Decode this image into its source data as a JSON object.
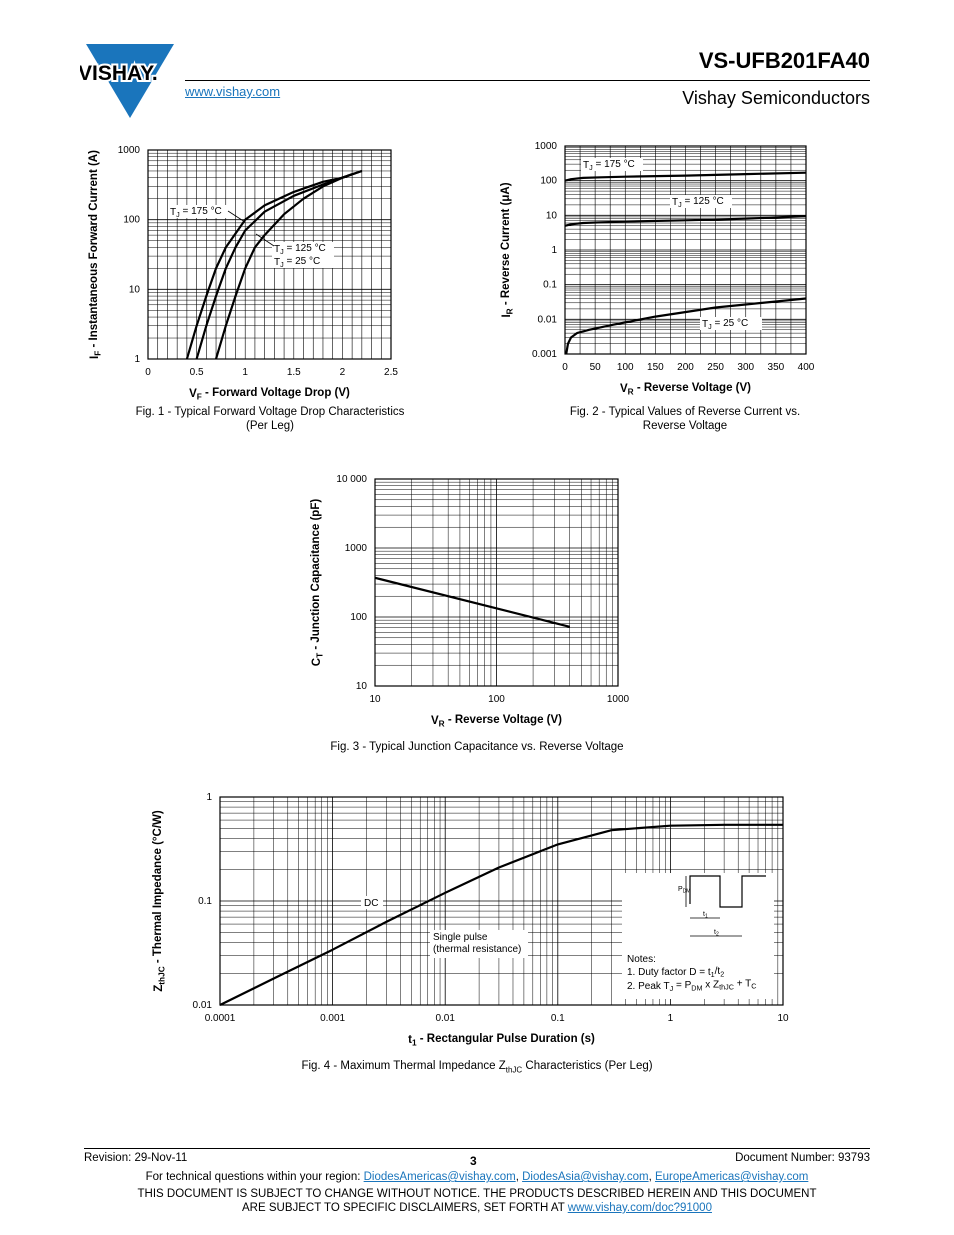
{
  "header": {
    "brand": "VISHAY.",
    "website": "www.vishay.com",
    "part_number": "VS-UFB201FA40",
    "company": "Vishay Semiconductors",
    "brand_color": "#1a75bc"
  },
  "charts": [
    {
      "type": "line",
      "caption_line1": "Fig. 1 - Typical Forward Voltage Drop Characteristics",
      "caption_line2": "(Per Leg)",
      "xlabel": "V",
      "xlabel_sub": "F",
      "xlabel_rest": " - Forward Voltage Drop (V)",
      "ylabel": "I",
      "ylabel_sub": "F",
      "ylabel_rest": " - Instantaneous Forward Current (A)",
      "xlim": [
        0,
        2.5
      ],
      "ylim": [
        1,
        1000
      ],
      "ylog": true,
      "x_ticks": [
        "0",
        "0.5",
        "1",
        "1.5",
        "2",
        "2.5"
      ],
      "y_ticks": [
        "1",
        "10",
        "100",
        "1000"
      ],
      "annotations": [
        {
          "pre": "T",
          "sub": "J",
          "post": " = 175 °C"
        },
        {
          "pre": "T",
          "sub": "J",
          "post": " = 125 °C"
        },
        {
          "pre": "T",
          "sub": "J",
          "post": " = 25 °C"
        }
      ],
      "series": [
        {
          "x": [
            0.4,
            0.5,
            0.6,
            0.7,
            0.8,
            1.0,
            1.2,
            1.5,
            1.8,
            2.0,
            2.1
          ],
          "y": [
            1,
            3,
            8,
            20,
            40,
            100,
            160,
            250,
            350,
            400,
            450
          ]
        },
        {
          "x": [
            0.5,
            0.6,
            0.7,
            0.8,
            0.9,
            1.0,
            1.2,
            1.5,
            1.8,
            2.0,
            2.2
          ],
          "y": [
            1,
            3,
            8,
            20,
            40,
            70,
            130,
            220,
            320,
            400,
            500
          ]
        },
        {
          "x": [
            0.7,
            0.8,
            0.9,
            1.0,
            1.1,
            1.2,
            1.4,
            1.6,
            1.8,
            2.0,
            2.2
          ],
          "y": [
            1,
            3,
            8,
            20,
            40,
            60,
            120,
            200,
            300,
            400,
            500
          ]
        }
      ]
    },
    {
      "type": "line",
      "caption_line1": "Fig. 2 - Typical Values of Reverse Current vs.",
      "caption_line2": "Reverse Voltage",
      "xlabel": "V",
      "xlabel_sub": "R",
      "xlabel_rest": " - Reverse Voltage (V)",
      "ylabel": "I",
      "ylabel_sub": "R",
      "ylabel_rest": " - Reverse Current (μA)",
      "xlim": [
        0,
        400
      ],
      "ylim": [
        0.001,
        1000
      ],
      "ylog": true,
      "x_ticks": [
        "0",
        "50",
        "100",
        "150",
        "200",
        "250",
        "300",
        "350",
        "400"
      ],
      "y_ticks": [
        "0.001",
        "0.01",
        "0.1",
        "1",
        "10",
        "100",
        "1000"
      ],
      "annotations": [
        {
          "pre": "T",
          "sub": "J",
          "post": " = 175 °C"
        },
        {
          "pre": "T",
          "sub": "J",
          "post": " = 125 °C"
        },
        {
          "pre": "T",
          "sub": "J",
          "post": " = 25 °C"
        }
      ],
      "series": [
        {
          "x": [
            0,
            10,
            30,
            60,
            100,
            200,
            300,
            400
          ],
          "y": [
            100,
            110,
            120,
            125,
            130,
            140,
            155,
            170
          ]
        },
        {
          "x": [
            0,
            10,
            30,
            60,
            100,
            200,
            300,
            400
          ],
          "y": [
            5,
            5.5,
            6,
            6.3,
            6.6,
            7.2,
            8,
            9.5
          ]
        },
        {
          "x": [
            2,
            5,
            10,
            20,
            40,
            80,
            150,
            250,
            400
          ],
          "y": [
            0.001,
            0.002,
            0.003,
            0.004,
            0.005,
            0.007,
            0.012,
            0.022,
            0.04
          ]
        }
      ]
    },
    {
      "type": "line",
      "caption_line1": "Fig. 3 - Typical Junction Capacitance vs. Reverse Voltage",
      "caption_line2": "",
      "xlabel": "V",
      "xlabel_sub": "R",
      "xlabel_rest": " - Reverse Voltage (V)",
      "ylabel": "C",
      "ylabel_sub": "T",
      "ylabel_rest": " - Junction Capacitance (pF)",
      "xlim": [
        10,
        1000
      ],
      "ylim": [
        10,
        10000
      ],
      "xlog": true,
      "ylog": true,
      "x_ticks": [
        "10",
        "100",
        "1000"
      ],
      "y_ticks": [
        "10",
        "100",
        "1000",
        "10 000"
      ],
      "annotations": [],
      "series": [
        {
          "x": [
            10,
            400
          ],
          "y": [
            370,
            72
          ]
        }
      ]
    },
    {
      "type": "line",
      "caption_line1": "Fig. 4 - Maximum Thermal Impedance Z",
      "caption_sub": "thJC",
      "caption_line1_rest": " Characteristics (Per Leg)",
      "caption_line2": "",
      "xlabel": "t",
      "xlabel_sub": "1",
      "xlabel_rest": " - Rectangular Pulse Duration (s)",
      "ylabel": "Z",
      "ylabel_sub": "thJC",
      "ylabel_rest": " - Thermal Impedance (°C/W)",
      "xlim": [
        0.0001,
        10
      ],
      "ylim": [
        0.01,
        1
      ],
      "xlog": true,
      "ylog": true,
      "x_ticks": [
        "0.0001",
        "0.001",
        "0.01",
        "0.1",
        "1",
        "10"
      ],
      "y_ticks": [
        "0.01",
        "0.1",
        "1"
      ],
      "dc_label": "DC",
      "single_pulse_line1": "Single pulse",
      "single_pulse_line2": "(thermal resistance)",
      "notes_title": "Notes:",
      "note1": {
        "pre": "1. Duty factor D = t",
        "s1": "1",
        "mid": "/t",
        "s2": "2"
      },
      "note2": {
        "pre": "2. Peak T",
        "s1": "J",
        "a": " = P",
        "s2": "DM",
        "b": " x Z",
        "s3": "thJC",
        "c": " + T",
        "s4": "C"
      },
      "inset": {
        "pdm": "P",
        "pdm_sub": "DM",
        "t1": "t",
        "t1_sub": "1",
        "t2": "t",
        "t2_sub": "2"
      },
      "series": [
        {
          "x": [
            0.0001,
            0.0003,
            0.001,
            0.003,
            0.01,
            0.03,
            0.1,
            0.3,
            1,
            3,
            10
          ],
          "y": [
            0.01,
            0.018,
            0.034,
            0.063,
            0.12,
            0.21,
            0.35,
            0.48,
            0.53,
            0.54,
            0.54
          ]
        }
      ]
    }
  ],
  "footer": {
    "revision": "Revision: 29-Nov-11",
    "page": "3",
    "document_number": "Document Number: 93793",
    "contact_prefix": "For technical questions within your region: ",
    "email1": "DiodesAmericas@vishay.com",
    "email2": "DiodesAsia@vishay.com",
    "email3": "EuropeAmericas@vishay.com",
    "sep": ", ",
    "disclaimer1": "THIS DOCUMENT IS SUBJECT TO CHANGE WITHOUT NOTICE. THE PRODUCTS DESCRIBED HEREIN AND THIS DOCUMENT",
    "disclaimer2_prefix": "ARE SUBJECT TO SPECIFIC DISCLAIMERS, SET FORTH AT ",
    "disclaimer_link": "www.vishay.com/doc?91000"
  }
}
